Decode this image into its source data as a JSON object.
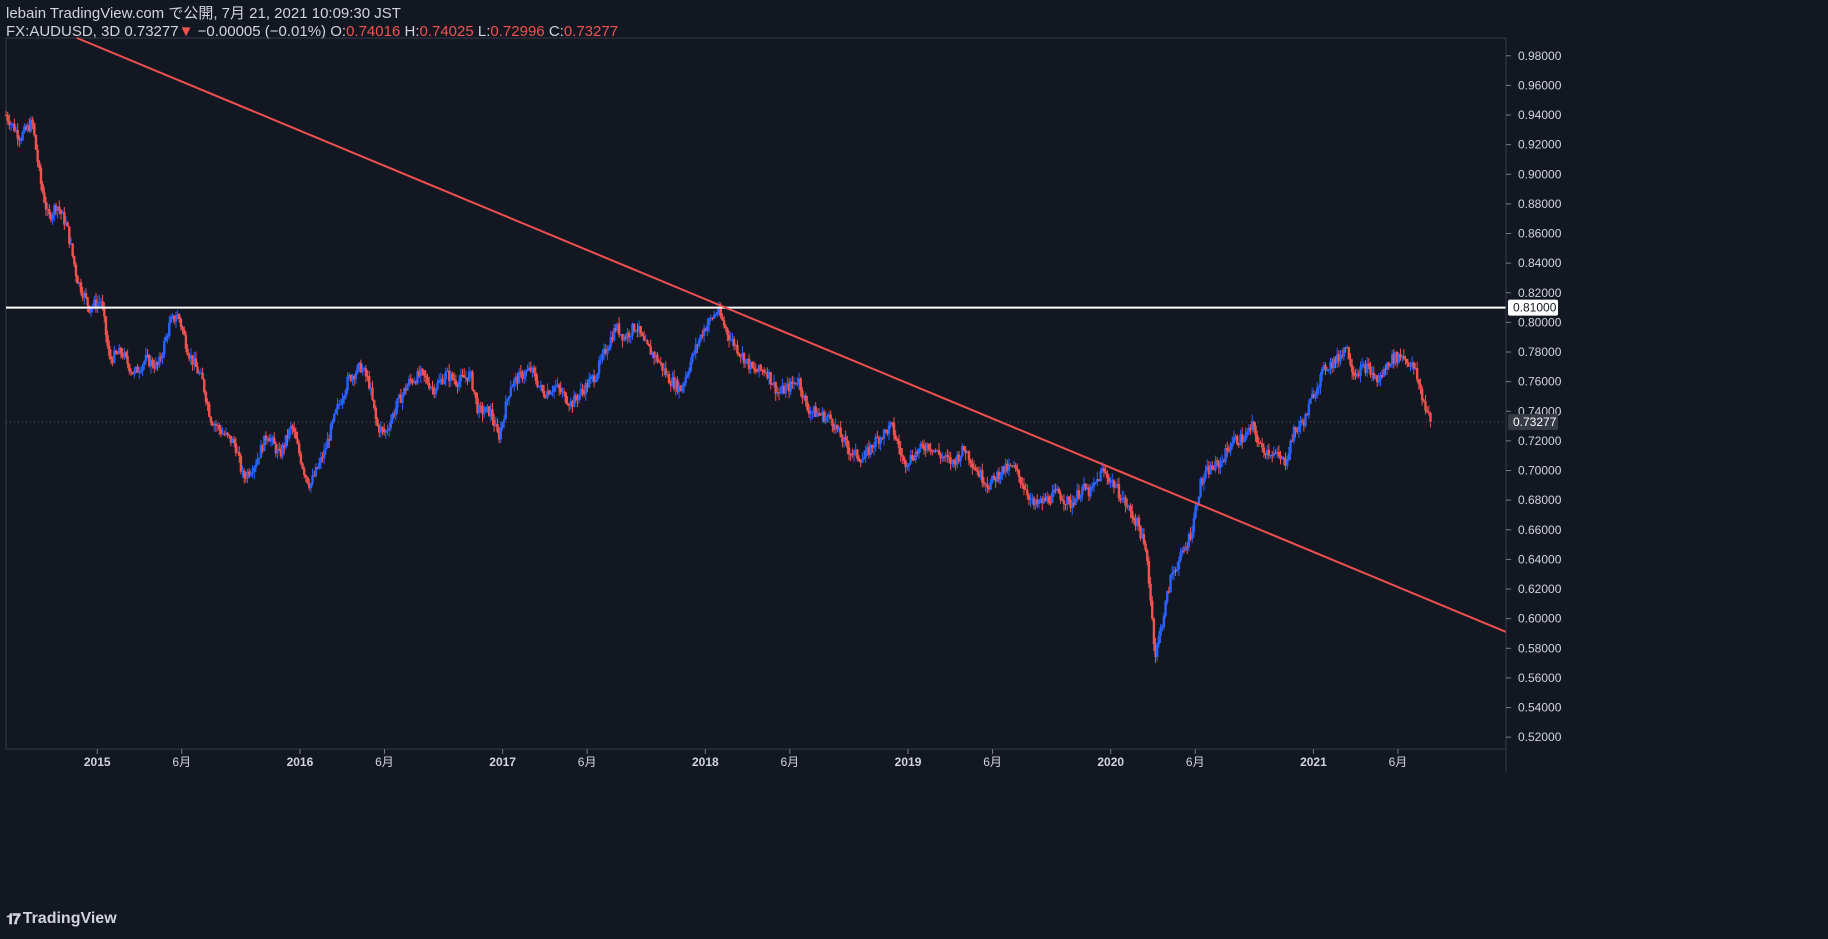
{
  "header": {
    "line1": "lebain TradingView.com で公開, 7月 21, 2021 10:09:30 JST",
    "symbol": "FX:AUDUSD, 3D",
    "last": "0.73277",
    "change": "−0.00005 (−0.01%)",
    "o_label": "O:",
    "o_value": "0.74016",
    "h_label": "H:",
    "h_value": "0.74025",
    "l_label": "L:",
    "l_value": "0.72996",
    "c_label": "C:",
    "c_value": "0.73277"
  },
  "footer": {
    "brand": "TradingView",
    "brand_icon": "tradingview-logo-icon"
  },
  "colors": {
    "background": "#131722",
    "up": "#2962ff",
    "down": "#ef5350",
    "grid": "#2a2e39",
    "trendline": "#f05050",
    "hline": "#ffffff",
    "axis_text": "#d1d4dc"
  },
  "chart_data": {
    "type": "candlestick",
    "title": "FX:AUDUSD, 3D",
    "ylim": [
      0.512,
      0.992
    ],
    "y_ticks": [
      "0.52000",
      "0.54000",
      "0.56000",
      "0.58000",
      "0.60000",
      "0.62000",
      "0.64000",
      "0.66000",
      "0.68000",
      "0.70000",
      "0.72000",
      "0.74000",
      "0.76000",
      "0.78000",
      "0.80000",
      "0.82000",
      "0.84000",
      "0.86000",
      "0.88000",
      "0.90000",
      "0.92000",
      "0.94000",
      "0.96000",
      "0.98000"
    ],
    "x_ticks": [
      {
        "label": "2015",
        "t": 2015.0
      },
      {
        "label": "6月",
        "t": 2015.417
      },
      {
        "label": "2016",
        "t": 2016.0
      },
      {
        "label": "6月",
        "t": 2016.417
      },
      {
        "label": "2017",
        "t": 2017.0
      },
      {
        "label": "6月",
        "t": 2017.417
      },
      {
        "label": "2018",
        "t": 2018.0
      },
      {
        "label": "6月",
        "t": 2018.417
      },
      {
        "label": "2019",
        "t": 2019.0
      },
      {
        "label": "6月",
        "t": 2019.417
      },
      {
        "label": "2020",
        "t": 2020.0
      },
      {
        "label": "6月",
        "t": 2020.417
      },
      {
        "label": "2021",
        "t": 2021.0
      },
      {
        "label": "6月",
        "t": 2021.417
      }
    ],
    "xlim": [
      2014.55,
      2021.95
    ],
    "price_path": [
      [
        2014.55,
        0.94
      ],
      [
        2014.62,
        0.925
      ],
      [
        2014.68,
        0.935
      ],
      [
        2014.72,
        0.895
      ],
      [
        2014.76,
        0.87
      ],
      [
        2014.8,
        0.88
      ],
      [
        2014.85,
        0.865
      ],
      [
        2014.9,
        0.83
      ],
      [
        2014.96,
        0.81
      ],
      [
        2015.02,
        0.815
      ],
      [
        2015.06,
        0.775
      ],
      [
        2015.12,
        0.78
      ],
      [
        2015.18,
        0.765
      ],
      [
        2015.24,
        0.775
      ],
      [
        2015.3,
        0.77
      ],
      [
        2015.36,
        0.8
      ],
      [
        2015.4,
        0.805
      ],
      [
        2015.45,
        0.78
      ],
      [
        2015.52,
        0.76
      ],
      [
        2015.56,
        0.735
      ],
      [
        2015.62,
        0.725
      ],
      [
        2015.68,
        0.718
      ],
      [
        2015.72,
        0.695
      ],
      [
        2015.78,
        0.705
      ],
      [
        2015.84,
        0.725
      ],
      [
        2015.9,
        0.71
      ],
      [
        2015.96,
        0.73
      ],
      [
        2016.02,
        0.7
      ],
      [
        2016.05,
        0.69
      ],
      [
        2016.12,
        0.712
      ],
      [
        2016.18,
        0.74
      ],
      [
        2016.24,
        0.762
      ],
      [
        2016.3,
        0.77
      ],
      [
        2016.34,
        0.76
      ],
      [
        2016.38,
        0.73
      ],
      [
        2016.42,
        0.725
      ],
      [
        2016.48,
        0.745
      ],
      [
        2016.54,
        0.76
      ],
      [
        2016.6,
        0.765
      ],
      [
        2016.66,
        0.755
      ],
      [
        2016.72,
        0.765
      ],
      [
        2016.78,
        0.76
      ],
      [
        2016.84,
        0.765
      ],
      [
        2016.88,
        0.74
      ],
      [
        2016.94,
        0.74
      ],
      [
        2016.98,
        0.722
      ],
      [
        2017.04,
        0.758
      ],
      [
        2017.1,
        0.765
      ],
      [
        2017.14,
        0.768
      ],
      [
        2017.2,
        0.752
      ],
      [
        2017.26,
        0.757
      ],
      [
        2017.34,
        0.745
      ],
      [
        2017.4,
        0.755
      ],
      [
        2017.46,
        0.765
      ],
      [
        2017.52,
        0.785
      ],
      [
        2017.56,
        0.797
      ],
      [
        2017.6,
        0.79
      ],
      [
        2017.66,
        0.798
      ],
      [
        2017.7,
        0.785
      ],
      [
        2017.76,
        0.776
      ],
      [
        2017.82,
        0.762
      ],
      [
        2017.88,
        0.755
      ],
      [
        2017.94,
        0.778
      ],
      [
        2017.99,
        0.795
      ],
      [
        2018.06,
        0.808
      ],
      [
        2018.12,
        0.79
      ],
      [
        2018.18,
        0.778
      ],
      [
        2018.24,
        0.767
      ],
      [
        2018.3,
        0.768
      ],
      [
        2018.36,
        0.752
      ],
      [
        2018.42,
        0.757
      ],
      [
        2018.46,
        0.762
      ],
      [
        2018.5,
        0.742
      ],
      [
        2018.56,
        0.738
      ],
      [
        2018.62,
        0.735
      ],
      [
        2018.68,
        0.72
      ],
      [
        2018.72,
        0.712
      ],
      [
        2018.78,
        0.708
      ],
      [
        2018.84,
        0.72
      ],
      [
        2018.88,
        0.725
      ],
      [
        2018.92,
        0.73
      ],
      [
        2018.98,
        0.705
      ],
      [
        2019.04,
        0.712
      ],
      [
        2019.1,
        0.718
      ],
      [
        2019.16,
        0.71
      ],
      [
        2019.22,
        0.705
      ],
      [
        2019.28,
        0.715
      ],
      [
        2019.34,
        0.7
      ],
      [
        2019.4,
        0.69
      ],
      [
        2019.46,
        0.7
      ],
      [
        2019.52,
        0.702
      ],
      [
        2019.58,
        0.688
      ],
      [
        2019.62,
        0.676
      ],
      [
        2019.68,
        0.68
      ],
      [
        2019.74,
        0.685
      ],
      [
        2019.8,
        0.677
      ],
      [
        2019.86,
        0.688
      ],
      [
        2019.9,
        0.685
      ],
      [
        2019.96,
        0.7
      ],
      [
        2020.02,
        0.69
      ],
      [
        2020.08,
        0.676
      ],
      [
        2020.14,
        0.662
      ],
      [
        2020.18,
        0.64
      ],
      [
        2020.22,
        0.575
      ],
      [
        2020.26,
        0.602
      ],
      [
        2020.3,
        0.63
      ],
      [
        2020.36,
        0.645
      ],
      [
        2020.4,
        0.66
      ],
      [
        2020.44,
        0.69
      ],
      [
        2020.48,
        0.7
      ],
      [
        2020.54,
        0.705
      ],
      [
        2020.6,
        0.72
      ],
      [
        2020.66,
        0.722
      ],
      [
        2020.7,
        0.73
      ],
      [
        2020.74,
        0.715
      ],
      [
        2020.8,
        0.712
      ],
      [
        2020.86,
        0.705
      ],
      [
        2020.9,
        0.725
      ],
      [
        2020.96,
        0.735
      ],
      [
        2021.0,
        0.752
      ],
      [
        2021.06,
        0.77
      ],
      [
        2021.12,
        0.775
      ],
      [
        2021.16,
        0.785
      ],
      [
        2021.2,
        0.766
      ],
      [
        2021.26,
        0.77
      ],
      [
        2021.32,
        0.76
      ],
      [
        2021.38,
        0.775
      ],
      [
        2021.44,
        0.778
      ],
      [
        2021.5,
        0.768
      ],
      [
        2021.54,
        0.748
      ],
      [
        2021.58,
        0.732
      ]
    ],
    "last_price": 0.73277,
    "horizontal_line": {
      "price": 0.81,
      "label": "0.81000"
    },
    "last_price_label": "0.73277",
    "trendline": {
      "t1": 2014.9,
      "p1": 0.992,
      "t2": 2021.95,
      "p2": 0.591
    }
  }
}
